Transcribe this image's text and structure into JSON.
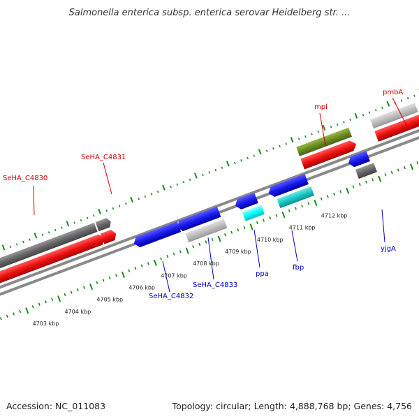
{
  "title": "Salmonella enterica subsp. enterica serovar Heidelberg str. ...",
  "footer": {
    "accession": "Accession: NC_011083",
    "topology": "Topology: circular; Length: 4,888,768 bp; Genes: 4,756"
  },
  "colors": {
    "forward_label": "#d40000",
    "reverse_label": "#0000c8",
    "backbone": "#7a7a7a",
    "tick": "#1a8a1a"
  },
  "scale_ticks": [
    "4703 kbp",
    "4704 kbp",
    "4705 kbp",
    "4706 kbp",
    "4707 kbp",
    "4708 kbp",
    "4709 kbp",
    "4710 kbp",
    "4711 kbp",
    "4712 kbp"
  ],
  "gene_labels": {
    "forward": [
      "SeHA_C4830",
      "SeHA_C4831",
      "mpl",
      "pmbA"
    ],
    "reverse": [
      "SeHA_C4832",
      "SeHA_C4833",
      "ppa",
      "fbp",
      "yjgA"
    ]
  },
  "feature_colors": {
    "red": "#ee1111",
    "dark_gray": "#666666",
    "light_gray": "#bdbdbd",
    "olive": "#6b8e23",
    "blue": "#1a1aee",
    "cyan": "#19c8c8",
    "aqua": "#00ffff"
  }
}
